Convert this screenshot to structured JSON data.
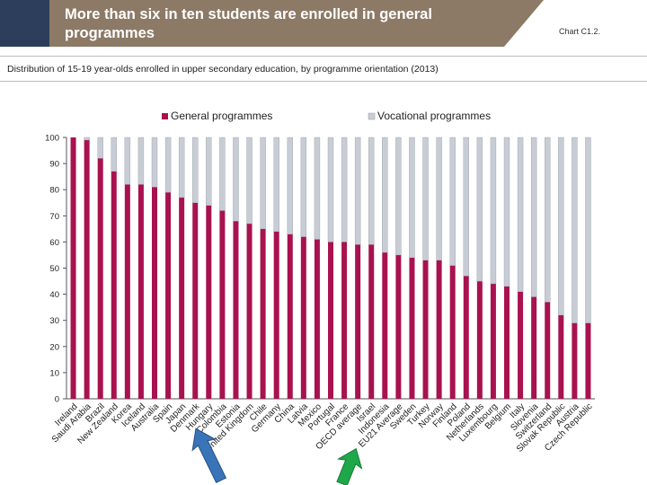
{
  "header": {
    "title": "More than six in ten students are enrolled in general programmes",
    "chart_ref": "Chart C1.2.",
    "subtitle": "Distribution of 15-19 year-olds enrolled in upper secondary education, by programme orientation (2013)"
  },
  "colors": {
    "general": "#a8124e",
    "vocational": "#c8ccd4",
    "header_banner": "#8c7a66",
    "header_corner": "#2c3e5c",
    "arrow_blue": "#3a74b8",
    "arrow_green": "#1fa84a"
  },
  "chart_data": {
    "type": "bar",
    "stacked": true,
    "categories": [
      "Ireland",
      "Saudi Arabia",
      "Brazil",
      "New Zealand",
      "Korea",
      "Iceland",
      "Australia",
      "Spain",
      "Japan",
      "Denmark",
      "Hungary",
      "Colombia",
      "Estonia",
      "United Kingdom",
      "Chile",
      "Germany",
      "China",
      "Latvia",
      "Mexico",
      "Portugal",
      "France",
      "OECD average",
      "Israel",
      "Indonesia",
      "EU21 Average",
      "Sweden",
      "Turkey",
      "Norway",
      "Finland",
      "Poland",
      "Netherlands",
      "Luxembourg",
      "Belgium",
      "Italy",
      "Slovenia",
      "Switzerland",
      "Slovak Republic",
      "Austria",
      "Czech Republic"
    ],
    "series": [
      {
        "name": "General programmes",
        "values": [
          100,
          99,
          92,
          87,
          82,
          82,
          81,
          79,
          77,
          75,
          74,
          72,
          68,
          67,
          65,
          64,
          63,
          62,
          61,
          60,
          60,
          59,
          59,
          56,
          55,
          54,
          53,
          53,
          51,
          47,
          45,
          44,
          43,
          41,
          39,
          37,
          32,
          29,
          29
        ]
      },
      {
        "name": "Vocational programmes",
        "values": [
          0,
          1,
          8,
          13,
          18,
          18,
          19,
          21,
          23,
          25,
          26,
          28,
          32,
          33,
          35,
          36,
          37,
          38,
          39,
          40,
          40,
          41,
          41,
          44,
          45,
          46,
          47,
          47,
          49,
          53,
          55,
          56,
          57,
          59,
          61,
          63,
          68,
          71,
          71
        ]
      }
    ],
    "ylim": [
      0,
      100
    ],
    "yticks": [
      0,
      10,
      20,
      30,
      40,
      50,
      60,
      70,
      80,
      90,
      100
    ],
    "legend": "top",
    "highlighted": [
      "United Kingdom",
      "EU21 Average"
    ]
  }
}
